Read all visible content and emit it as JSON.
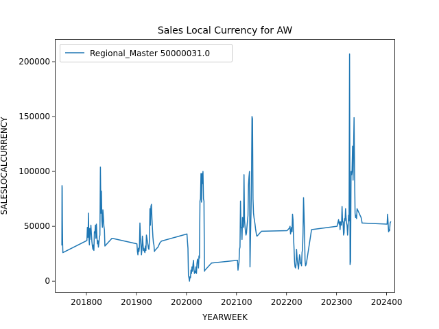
{
  "chart_data": {
    "type": "line",
    "title": "Sales Local Currency for AW",
    "xlabel": "YEARWEEK",
    "ylabel": "SALESLOCALCURRENCY",
    "xlim": [
      201737,
      202417
    ],
    "ylim": [
      -10500,
      220000
    ],
    "xticks": [
      201800,
      201900,
      202000,
      202100,
      202200,
      202300,
      202400
    ],
    "xtick_labels": [
      "201800",
      "201900",
      "202000",
      "202100",
      "202200",
      "202300",
      "202400"
    ],
    "yticks": [
      0,
      50000,
      100000,
      150000,
      200000
    ],
    "ytick_labels": [
      "0",
      "50000",
      "100000",
      "150000",
      "200000"
    ],
    "grid": false,
    "legend_position": "top-left",
    "colors": {
      "series": "#1f77b4"
    },
    "series": [
      {
        "name": "Regional_Master 50000031.0",
        "x": [
          201751,
          201751.3,
          201751.6,
          201752,
          201752.5,
          201753,
          201801,
          201802,
          201803,
          201803.5,
          201804,
          201805,
          201806,
          201806.5,
          201807,
          201808,
          201809,
          201810,
          201811,
          201812,
          201813,
          201814,
          201815,
          201816,
          201817,
          201818,
          201819,
          201820,
          201821,
          201822,
          201823,
          201824,
          201825,
          201826,
          201827,
          201828,
          201829,
          201830,
          201831,
          201832,
          201833,
          201834,
          201835,
          201836,
          201837,
          201838,
          201839,
          201840,
          201841,
          201842,
          201843,
          201844,
          201845,
          201846,
          201847,
          201848,
          201849,
          201850,
          201851,
          201852,
          201901,
          201902,
          201903,
          201904,
          201905,
          201906,
          201907,
          201908,
          201909,
          201910,
          201911,
          201912,
          201913,
          201914,
          201915,
          201916,
          201917,
          201918,
          201919,
          201920,
          201921,
          201922,
          201923,
          201924,
          201925,
          201926,
          201927,
          201928,
          201929,
          201930,
          201931,
          201932,
          201933,
          201934,
          201935,
          201936,
          201937,
          201938,
          201939,
          201940,
          201941,
          201942,
          201943,
          201944,
          201945,
          201946,
          201947,
          201948,
          201949,
          201950,
          202001,
          202002,
          202003,
          202004,
          202005,
          202006,
          202007,
          202008,
          202009,
          202010,
          202011,
          202012,
          202013,
          202014,
          202015,
          202016,
          202017,
          202018,
          202019,
          202020,
          202021,
          202022,
          202023,
          202024,
          202025,
          202026,
          202027,
          202028,
          202029,
          202030,
          202031,
          202032,
          202033,
          202034,
          202035,
          202036,
          202037,
          202038,
          202039,
          202040,
          202041,
          202042,
          202043,
          202044,
          202045,
          202046,
          202047,
          202048,
          202049,
          202050,
          202102,
          202103,
          202104,
          202105,
          202106,
          202107,
          202108,
          202109,
          202110,
          202111,
          202112,
          202113,
          202114,
          202115,
          202116,
          202117,
          202118,
          202119,
          202120,
          202121,
          202122,
          202123,
          202124,
          202125,
          202126,
          202127,
          202128,
          202129,
          202130,
          202131,
          202132,
          202133,
          202134,
          202135,
          202136,
          202137,
          202138,
          202139,
          202140,
          202141,
          202142,
          202143,
          202144,
          202145,
          202146,
          202147,
          202148,
          202149,
          202150,
          202201,
          202202,
          202203,
          202204,
          202205,
          202206,
          202207,
          202208,
          202209,
          202210,
          202211,
          202212,
          202213,
          202214,
          202215,
          202216,
          202217,
          202218,
          202219,
          202220,
          202221,
          202222,
          202223,
          202224,
          202225,
          202226,
          202227,
          202228,
          202229,
          202230,
          202231,
          202232,
          202233,
          202234,
          202235,
          202236,
          202237,
          202238,
          202239,
          202240,
          202241,
          202242,
          202243,
          202244,
          202245,
          202246,
          202247,
          202248,
          202249,
          202250,
          202301,
          202302,
          202303,
          202304,
          202305,
          202306,
          202307,
          202308,
          202309,
          202310,
          202311,
          202312,
          202313,
          202314,
          202315,
          202316,
          202317,
          202318,
          202319,
          202320,
          202321,
          202322,
          202323,
          202324,
          202325,
          202326,
          202327,
          202328,
          202329,
          202330,
          202331,
          202332,
          202333,
          202334,
          202335,
          202336,
          202337,
          202338,
          202339,
          202340,
          202341,
          202342,
          202343,
          202344,
          202345,
          202346,
          202347,
          202348,
          202349,
          202350,
          202351,
          202401,
          202402,
          202403,
          202404,
          202405,
          202406,
          202407,
          202408
        ],
        "values": [
          33000,
          87000,
          85000,
          55000,
          34000,
          26000,
          37000,
          49000,
          40000,
          42000,
          62000,
          40000,
          33000,
          48000,
          38000,
          44000,
          51000,
          43000,
          36000,
          32000,
          29000,
          33000,
          28000,
          45000,
          44000,
          51000,
          39000,
          52000,
          41000,
          34000,
          37000,
          31000,
          35000,
          40000,
          42000,
          104000,
          62000,
          82000,
          55000,
          49000,
          65000,
          58000,
          50000,
          47000,
          32000,
          32500,
          33000,
          33500,
          34000,
          34500,
          35000,
          35500,
          36000,
          36500,
          37000,
          37500,
          38000,
          38500,
          39000,
          39000,
          34000,
          27000,
          24000,
          30000,
          27000,
          31000,
          53000,
          40000,
          33000,
          24000,
          29000,
          41000,
          35000,
          28000,
          30000,
          27000,
          26000,
          32000,
          28000,
          42000,
          39000,
          36000,
          33000,
          30000,
          29000,
          38000,
          66000,
          51000,
          68000,
          70000,
          57000,
          48000,
          40000,
          35000,
          33000,
          27000,
          28000,
          28500,
          29000,
          29500,
          30000,
          30500,
          31000,
          32000,
          33000,
          34000,
          35000,
          35500,
          36000,
          36500,
          43000,
          36000,
          30000,
          5000,
          3000,
          0,
          4000,
          3000,
          10000,
          7000,
          13000,
          9000,
          15000,
          19000,
          11000,
          7000,
          9000,
          8000,
          13000,
          7000,
          16000,
          20000,
          18000,
          12000,
          23000,
          21000,
          73000,
          75000,
          98000,
          72000,
          98000,
          89000,
          100000,
          75000,
          73000,
          9000,
          10000,
          10500,
          11000,
          11500,
          12000,
          12500,
          13000,
          13500,
          14000,
          14500,
          15000,
          15500,
          16000,
          16500,
          19000,
          10000,
          14000,
          17000,
          29000,
          31000,
          73000,
          49000,
          49000,
          38000,
          58000,
          52000,
          49000,
          97000,
          56000,
          50000,
          45000,
          42000,
          44000,
          50000,
          55000,
          60000,
          88000,
          95000,
          100000,
          13000,
          40000,
          62000,
          90000,
          150000,
          148000,
          75000,
          62000,
          58000,
          55000,
          52000,
          48000,
          45000,
          42000,
          41000,
          41500,
          42000,
          42500,
          43000,
          43500,
          44000,
          44500,
          45000,
          45500,
          46000,
          46500,
          47000,
          47500,
          48000,
          48500,
          50000,
          43000,
          46000,
          49000,
          45000,
          61000,
          56000,
          40000,
          30000,
          18000,
          13000,
          12000,
          15000,
          29000,
          22000,
          17000,
          14000,
          11000,
          18000,
          24000,
          22000,
          16000,
          17000,
          14000,
          26000,
          29000,
          44000,
          76000,
          61000,
          43000,
          19000,
          14000,
          15000,
          17000,
          20000,
          23000,
          26000,
          29000,
          32000,
          35000,
          38000,
          41000,
          44000,
          47000,
          50000,
          52000,
          54000,
          56000,
          52000,
          54000,
          47000,
          54000,
          53000,
          51000,
          68000,
          54000,
          54000,
          42000,
          44000,
          57000,
          55000,
          66000,
          58000,
          53000,
          51000,
          42000,
          49000,
          60000,
          55000,
          207000,
          15000,
          18000,
          100000,
          97000,
          101000,
          123000,
          92000,
          121000,
          149000,
          99000,
          62000,
          58000,
          60000,
          57000,
          66000,
          65000,
          64000,
          63000,
          62000,
          61000,
          60000,
          59000,
          58000,
          56000,
          53000,
          52000,
          61000,
          53000,
          45000,
          47000,
          46000,
          53000,
          54000
        ]
      }
    ]
  }
}
